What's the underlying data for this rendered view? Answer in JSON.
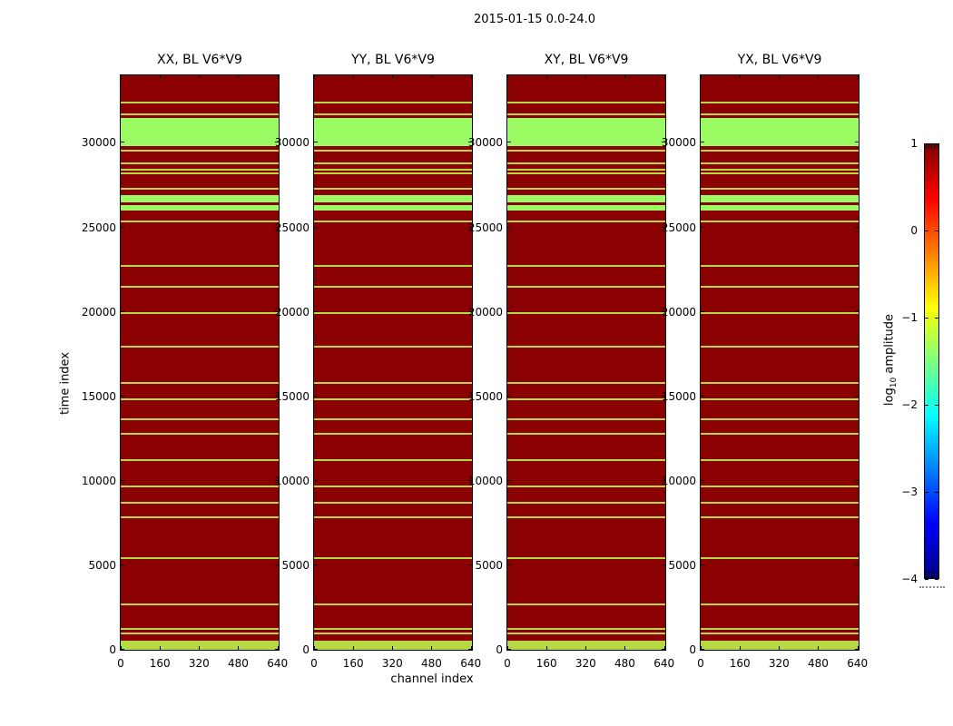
{
  "figure": {
    "title": "2015-01-15 0.0-24.0",
    "xlabel": "channel index",
    "ylabel": "time index",
    "colorbar_label": {
      "pre": "log",
      "sub": "10",
      "post": " amplitude"
    }
  },
  "chart_data": {
    "type": "heatmap",
    "title": "2015-01-15 0.0-24.0",
    "xlabel": "channel index",
    "ylabel": "time index",
    "panels": [
      {
        "id": "xx",
        "title": "XX, BL V6*V9"
      },
      {
        "id": "yy",
        "title": "YY, BL V6*V9"
      },
      {
        "id": "xy",
        "title": "XY, BL V6*V9"
      },
      {
        "id": "yx",
        "title": "YX, BL V6*V9"
      }
    ],
    "x_ticks": [
      0,
      160,
      320,
      480,
      640
    ],
    "y_ticks": [
      0,
      5000,
      10000,
      15000,
      20000,
      25000,
      30000
    ],
    "x_range": [
      0,
      645
    ],
    "y_range": [
      0,
      34000
    ],
    "colors": {
      "background": "#8b0000",
      "band": "#9afb63",
      "line": "#b5d844",
      "corner_marker": "#7ef73e"
    },
    "bands": [
      [
        29800,
        31500
      ],
      [
        26480,
        26910
      ],
      [
        26000,
        26320
      ]
    ],
    "lines": [
      32400,
      31700,
      29560,
      28810,
      28440,
      28220,
      27280,
      25330,
      22700,
      21490,
      19940,
      17960,
      15810,
      14820,
      13670,
      12810,
      11200,
      9650,
      8700,
      7830,
      5430,
      2680,
      1250,
      950,
      510,
      410,
      310,
      210,
      110,
      10
    ],
    "corner_marker": {
      "panel": 0,
      "t_range": [
        0,
        260
      ],
      "x_range": [
        0,
        12
      ]
    },
    "colorbar": {
      "label": "log10 amplitude",
      "colormap": "jet",
      "range": [
        -4,
        1
      ],
      "ticks": [
        1,
        0,
        -1,
        -2,
        -3,
        -4
      ],
      "tick_labels": [
        "1",
        "0",
        "−1",
        "−2",
        "−3",
        "−4"
      ]
    }
  }
}
